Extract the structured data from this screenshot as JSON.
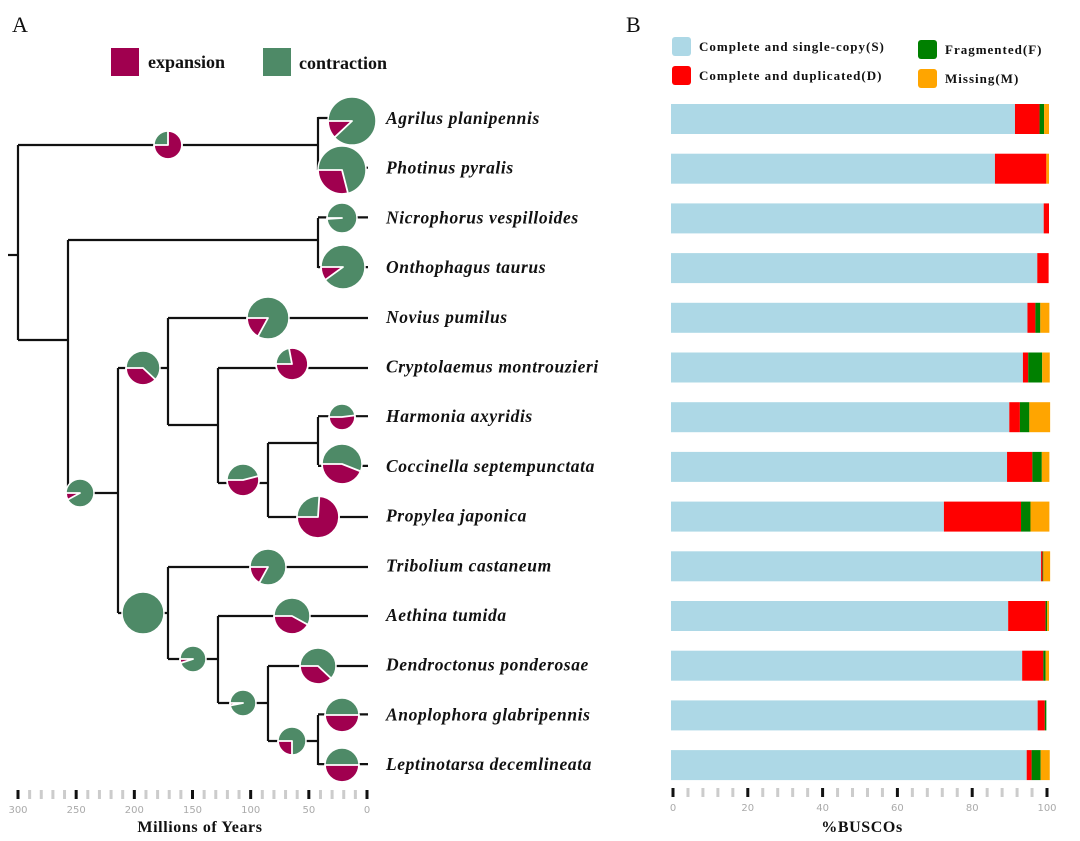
{
  "panel_a": {
    "label": "A",
    "legend": {
      "expansion": "expansion",
      "contraction": "contraction"
    },
    "colors": {
      "expansion": "#a0004f",
      "contraction": "#4e8a67",
      "highlight": "#d42020"
    },
    "axis": {
      "title": "Millions of Years",
      "ticks": [
        "300",
        "250",
        "200",
        "150",
        "100",
        "50",
        "0"
      ]
    },
    "taxa": [
      {
        "name": "Agrilus planipennis",
        "expansion_fraction": 0.12
      },
      {
        "name": "Photinus pyralis",
        "expansion_fraction": 0.29
      },
      {
        "name": "Nicrophorus vespilloides",
        "expansion_fraction": 0.01
      },
      {
        "name": "Onthophagus taurus",
        "expansion_fraction": 0.1
      },
      {
        "name": "Novius pumilus",
        "expansion_fraction": 0.17,
        "highlight": true
      },
      {
        "name": "Cryptolaemus montrouzieri",
        "expansion_fraction": 0.78
      },
      {
        "name": "Harmonia axyridis",
        "expansion_fraction": 0.52
      },
      {
        "name": "Coccinella septempunctata",
        "expansion_fraction": 0.44
      },
      {
        "name": "Propylea japonica",
        "expansion_fraction": 0.74
      },
      {
        "name": "Tribolium castaneum",
        "expansion_fraction": 0.17
      },
      {
        "name": "Aethina tumida",
        "expansion_fraction": 0.42
      },
      {
        "name": "Dendroctonus ponderosae",
        "expansion_fraction": 0.38
      },
      {
        "name": "Anoplophora glabripennis",
        "expansion_fraction": 0.5
      },
      {
        "name": "Leptinotarsa decemlineata",
        "expansion_fraction": 0.5
      }
    ],
    "internal_nodes": [
      {
        "clade": "Agrilus+Photinus",
        "expansion_fraction": 0.75
      },
      {
        "clade": "Polyphaga core",
        "expansion_fraction": 0.08
      },
      {
        "clade": "Coccinellidae",
        "expansion_fraction": 0.38
      },
      {
        "clade": "Coccinellinae",
        "expansion_fraction": 0.54
      },
      {
        "clade": "Tribolium+others",
        "expansion_fraction": 0.0
      },
      {
        "clade": "Aethina+others",
        "expansion_fraction": 0.05
      },
      {
        "clade": "Dendroctonus+others",
        "expansion_fraction": 0.03
      },
      {
        "clade": "Chrysomeloidea",
        "expansion_fraction": 0.25
      }
    ]
  },
  "chart_data": {
    "type": "bar",
    "orientation": "horizontal",
    "stacked": true,
    "title": "B",
    "xlabel": "%BUSCOs",
    "xlim": [
      0,
      100
    ],
    "xticks": [
      "0",
      "20",
      "40",
      "60",
      "80",
      "100"
    ],
    "categories": [
      "Agrilus planipennis",
      "Photinus pyralis",
      "Nicrophorus vespilloides",
      "Onthophagus taurus",
      "Novius pumilus",
      "Cryptolaemus montrouzieri",
      "Harmonia axyridis",
      "Coccinella septempunctata",
      "Propylea japonica",
      "Tribolium castaneum",
      "Aethina tumida",
      "Dendroctonus ponderosae",
      "Anoplophora glabripennis",
      "Leptinotarsa decemlineata"
    ],
    "legend_position": "top",
    "series": [
      {
        "name": "Complete and single-copy(S)",
        "color": "#add8e6",
        "values": [
          91.0,
          85.7,
          98.6,
          96.9,
          94.3,
          93.1,
          89.5,
          88.9,
          72.2,
          97.9,
          89.2,
          92.9,
          97.0,
          94.1
        ]
      },
      {
        "name": "Complete and duplicated(D)",
        "color": "#ff0000",
        "values": [
          6.5,
          13.6,
          1.4,
          3.0,
          2.1,
          1.4,
          2.8,
          6.7,
          20.4,
          0.4,
          9.9,
          5.6,
          1.9,
          1.3
        ]
      },
      {
        "name": "Fragmented(F)",
        "color": "#008000",
        "values": [
          1.2,
          0.0,
          0.0,
          0.0,
          1.3,
          3.7,
          2.5,
          2.5,
          2.5,
          0.2,
          0.4,
          0.6,
          0.4,
          2.4
        ]
      },
      {
        "name": "Missing(M)",
        "color": "#ffa500",
        "values": [
          1.3,
          0.7,
          0.0,
          0.0,
          2.4,
          2.0,
          5.5,
          2.0,
          5.0,
          1.8,
          0.5,
          0.9,
          0.0,
          2.4
        ]
      }
    ]
  }
}
